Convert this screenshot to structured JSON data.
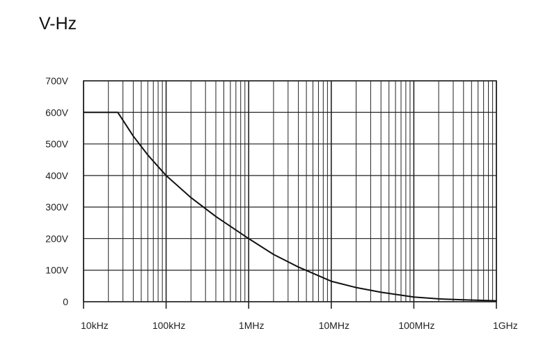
{
  "title": "V-Hz",
  "chart_data": {
    "type": "line",
    "title": "V-Hz",
    "xlabel": "",
    "ylabel": "",
    "x_scale": "log",
    "xlim": [
      10000,
      1000000000
    ],
    "ylim": [
      0,
      700
    ],
    "x_ticks": [
      10000,
      100000,
      1000000,
      10000000,
      100000000,
      1000000000
    ],
    "x_tick_labels": [
      "10kHz",
      "100kHz",
      "1MHz",
      "10MHz",
      "100MHz",
      "1GHz"
    ],
    "y_ticks": [
      0,
      100,
      200,
      300,
      400,
      500,
      600,
      700
    ],
    "y_tick_labels": [
      "0",
      "100V",
      "200V",
      "300V",
      "400V",
      "500V",
      "600V",
      "700V"
    ],
    "grid": true,
    "series": [
      {
        "x": [
          10000,
          26000,
          30000,
          40000,
          60000,
          100000,
          200000,
          400000,
          1000000,
          2000000,
          4000000,
          10000000,
          20000000,
          40000000,
          100000000,
          200000000,
          400000000,
          1000000000
        ],
        "y": [
          600,
          600,
          575,
          525,
          465,
          400,
          330,
          270,
          200,
          150,
          110,
          65,
          45,
          30,
          15,
          9,
          6,
          3
        ]
      }
    ],
    "colors": {
      "line": "#111111",
      "grid": "#222222",
      "background": "#ffffff"
    }
  }
}
